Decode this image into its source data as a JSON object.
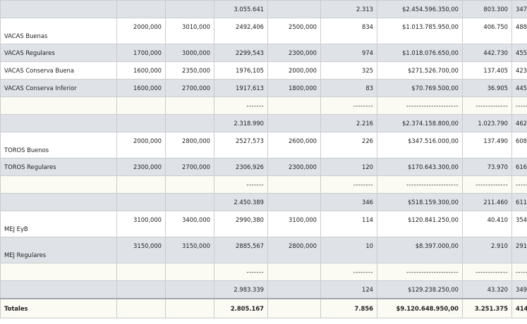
{
  "rows": [
    {
      "label": "",
      "c1": "",
      "c2": "",
      "c3": "3.055.641",
      "c4": "",
      "c5": "2.313",
      "c6": "$2.454.596.350,00",
      "c7": "803.300",
      "c8": "347"
    },
    {
      "label": "VACAS Buenas",
      "c1": "2000,000",
      "c2": "3010,000",
      "c3": "2492,406",
      "c4": "2500,000",
      "c5": "834",
      "c6": "$1.013.785.950,00",
      "c7": "406.750",
      "c8": "488"
    },
    {
      "label": "VACAS Regulares",
      "c1": "1700,000",
      "c2": "3000,000",
      "c3": "2299,543",
      "c4": "2300,000",
      "c5": "974",
      "c6": "$1.018.076.650,00",
      "c7": "442.730",
      "c8": "455"
    },
    {
      "label": "VACAS Conserva Buena",
      "c1": "1600,000",
      "c2": "2350,000",
      "c3": "1976,105",
      "c4": "2000,000",
      "c5": "325",
      "c6": "$271.526.700,00",
      "c7": "137.405",
      "c8": "423"
    },
    {
      "label": "VACAS Conserva Inferior",
      "c1": "1600,000",
      "c2": "2700,000",
      "c3": "1917,613",
      "c4": "1800,000",
      "c5": "83",
      "c6": "$70.769.500,00",
      "c7": "36.905",
      "c8": "445"
    },
    {
      "label": "",
      "c1": "",
      "c2": "",
      "c3": "-------",
      "c4": "",
      "c5": "--------",
      "c6": "---------------------",
      "c7": "-------------",
      "c8": "------"
    },
    {
      "label": "",
      "c1": "",
      "c2": "",
      "c3": "2.318.990",
      "c4": "",
      "c5": "2.216",
      "c6": "$2.374.158.800,00",
      "c7": "1.023.790",
      "c8": "462"
    },
    {
      "label": "TOROS Buenos",
      "c1": "2000,000",
      "c2": "2800,000",
      "c3": "2527,573",
      "c4": "2600,000",
      "c5": "226",
      "c6": "$347.516.000,00",
      "c7": "137.490",
      "c8": "608"
    },
    {
      "label": "TOROS Regulares",
      "c1": "2300,000",
      "c2": "2700,000",
      "c3": "2306,926",
      "c4": "2300,000",
      "c5": "120",
      "c6": "$170.643.300,00",
      "c7": "73.970",
      "c8": "616"
    },
    {
      "label": "",
      "c1": "",
      "c2": "",
      "c3": "-------",
      "c4": "",
      "c5": "--------",
      "c6": "---------------------",
      "c7": "-------------",
      "c8": "------"
    },
    {
      "label": "",
      "c1": "",
      "c2": "",
      "c3": "2.450.389",
      "c4": "",
      "c5": "346",
      "c6": "$518.159.300,00",
      "c7": "211.460",
      "c8": "611"
    },
    {
      "label": "MEJ EyB",
      "c1": "3100,000",
      "c2": "3400,000",
      "c3": "2990,380",
      "c4": "3100,000",
      "c5": "114",
      "c6": "$120.841.250,00",
      "c7": "40.410",
      "c8": "354"
    },
    {
      "label": "MEJ Regulares",
      "c1": "3150,000",
      "c2": "3150,000",
      "c3": "2885,567",
      "c4": "2800,000",
      "c5": "10",
      "c6": "$8.397.000,00",
      "c7": "2.910",
      "c8": "291"
    },
    {
      "label": "",
      "c1": "",
      "c2": "",
      "c3": "-------",
      "c4": "",
      "c5": "--------",
      "c6": "---------------------",
      "c7": "-------------",
      "c8": "------"
    },
    {
      "label": "",
      "c1": "",
      "c2": "",
      "c3": "2.983.339",
      "c4": "",
      "c5": "124",
      "c6": "$129.238.250,00",
      "c7": "43.320",
      "c8": "349"
    }
  ],
  "totals": {
    "label": "Totales",
    "c1": "",
    "c2": "",
    "c3": "2.805.167",
    "c4": "",
    "c5": "7.856",
    "c6": "$9.120.648.950,00",
    "c7": "3.251.375",
    "c8": "414"
  }
}
